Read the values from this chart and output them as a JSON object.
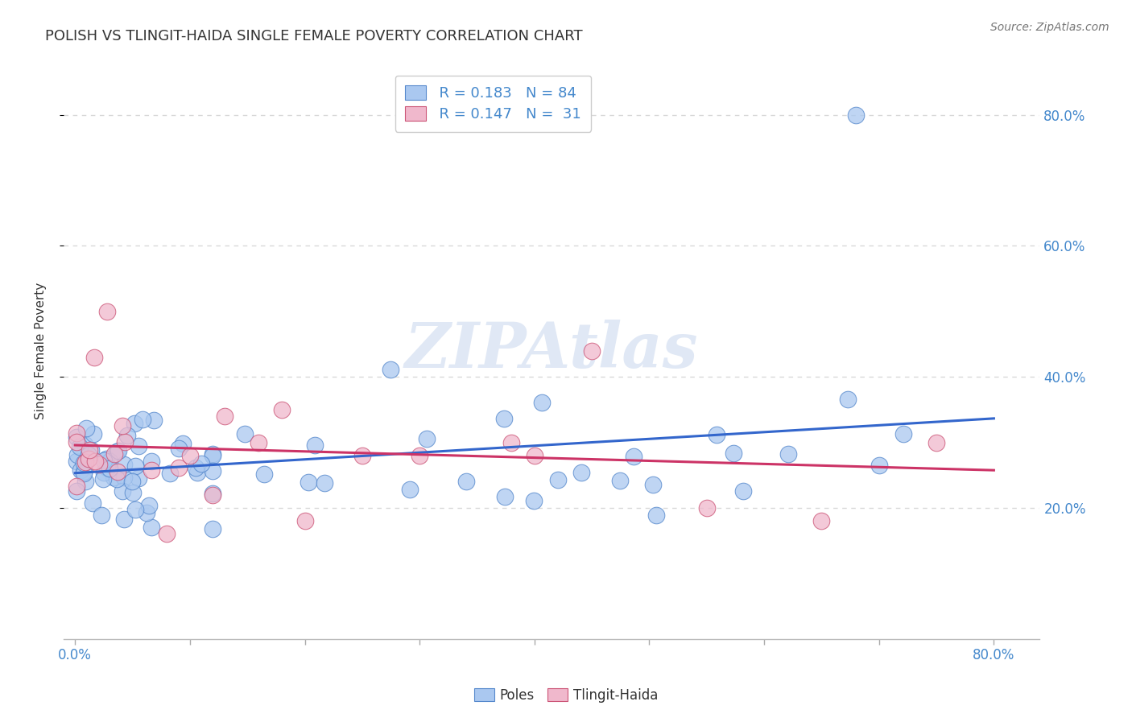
{
  "title": "POLISH VS TLINGIT-HAIDA SINGLE FEMALE POVERTY CORRELATION CHART",
  "source": "Source: ZipAtlas.com",
  "ylabel": "Single Female Poverty",
  "xlim": [
    -0.01,
    0.84
  ],
  "ylim": [
    0.0,
    0.88
  ],
  "yticks": [
    0.2,
    0.4,
    0.6,
    0.8
  ],
  "ytick_labels": [
    "20.0%",
    "40.0%",
    "60.0%",
    "80.0%"
  ],
  "xtick_vals": [
    0.0,
    0.1,
    0.2,
    0.3,
    0.4,
    0.5,
    0.6,
    0.7,
    0.8
  ],
  "background_color": "#ffffff",
  "grid_color": "#d8d8d8",
  "poles_color": "#aac8f0",
  "poles_edge_color": "#5588cc",
  "tlingit_color": "#f0b8cc",
  "tlingit_edge_color": "#cc5577",
  "poles_line_color": "#3366cc",
  "tlingit_line_color": "#cc3366",
  "R_poles": 0.183,
  "N_poles": 84,
  "R_tlingit": 0.147,
  "N_tlingit": 31,
  "tick_color": "#4488cc",
  "watermark_color": "#e0e8f5",
  "watermark_text": "ZIPAtlas"
}
